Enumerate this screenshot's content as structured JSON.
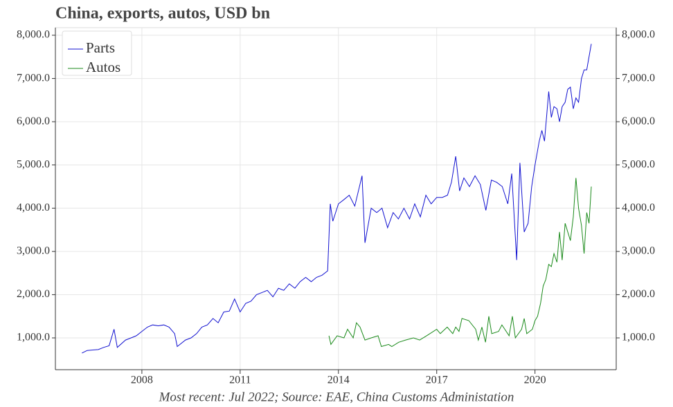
{
  "chart_data": {
    "type": "line",
    "title": "China, exports, autos, USD bn",
    "footnote": "Most recent: Jul 2022; Source: EAE, China Customs Administation",
    "xlim": [
      2005.36,
      2022.48
    ],
    "xticks": [
      2008,
      2011,
      2014,
      2017,
      2020
    ],
    "ylim": [
      265,
      8176
    ],
    "yticks": [
      {
        "value": 1000,
        "label": "1,000.0"
      },
      {
        "value": 2000,
        "label": "2,000.0"
      },
      {
        "value": 3000,
        "label": "3,000.0"
      },
      {
        "value": 4000,
        "label": "4,000.0"
      },
      {
        "value": 5000,
        "label": "5,000.0"
      },
      {
        "value": 6000,
        "label": "6,000.0"
      },
      {
        "value": 7000,
        "label": "7,000.0"
      },
      {
        "value": 8000,
        "label": "8,000.0"
      }
    ],
    "y2lim": [
      265,
      8176
    ],
    "y2ticks": [
      {
        "value": 1000,
        "label": "1,000.0"
      },
      {
        "value": 2000,
        "label": "2,000.0"
      },
      {
        "value": 3000,
        "label": "3,000.0"
      },
      {
        "value": 4000,
        "label": "4,000.0"
      },
      {
        "value": 5000,
        "label": "5,000.0"
      },
      {
        "value": 6000,
        "label": "6,000.0"
      },
      {
        "value": 7000,
        "label": "7,000.0"
      },
      {
        "value": 8000,
        "label": "8,000.0"
      }
    ],
    "grid": true,
    "legend": "upper-left",
    "series": [
      {
        "name": "Parts",
        "color": "#1010d0",
        "x": [
          2006.17,
          2006.33,
          2006.5,
          2006.67,
          2006.83,
          2007.0,
          2007.15,
          2007.25,
          2007.5,
          2007.67,
          2007.83,
          2008.0,
          2008.17,
          2008.33,
          2008.5,
          2008.67,
          2008.83,
          2009.0,
          2009.08,
          2009.33,
          2009.5,
          2009.67,
          2009.83,
          2010.0,
          2010.17,
          2010.33,
          2010.5,
          2010.67,
          2010.83,
          2011.0,
          2011.17,
          2011.33,
          2011.5,
          2011.67,
          2011.83,
          2012.0,
          2012.17,
          2012.33,
          2012.5,
          2012.67,
          2012.83,
          2013.0,
          2013.17,
          2013.33,
          2013.5,
          2013.67,
          2013.75,
          2013.83,
          2014.0,
          2014.17,
          2014.33,
          2014.5,
          2014.72,
          2014.81,
          2015.0,
          2015.17,
          2015.33,
          2015.5,
          2015.67,
          2015.83,
          2016.0,
          2016.17,
          2016.33,
          2016.5,
          2016.67,
          2016.83,
          2017.0,
          2017.17,
          2017.33,
          2017.45,
          2017.58,
          2017.7,
          2017.83,
          2018.0,
          2018.17,
          2018.33,
          2018.5,
          2018.67,
          2018.83,
          2019.0,
          2019.17,
          2019.29,
          2019.44,
          2019.54,
          2019.67,
          2019.79,
          2019.9,
          2020.0,
          2020.13,
          2020.21,
          2020.29,
          2020.42,
          2020.5,
          2020.58,
          2020.67,
          2020.75,
          2020.83,
          2020.92,
          2021.0,
          2021.08,
          2021.17,
          2021.25,
          2021.33,
          2021.42,
          2021.5,
          2021.58,
          2021.72
        ],
        "values": [
          650,
          710,
          720,
          730,
          780,
          820,
          1200,
          780,
          950,
          1000,
          1050,
          1150,
          1250,
          1300,
          1280,
          1300,
          1250,
          1100,
          800,
          950,
          1000,
          1100,
          1250,
          1300,
          1450,
          1350,
          1600,
          1620,
          1900,
          1600,
          1800,
          1850,
          2000,
          2050,
          2100,
          1950,
          2150,
          2100,
          2250,
          2150,
          2300,
          2400,
          2300,
          2400,
          2450,
          2550,
          4100,
          3700,
          4100,
          4200,
          4300,
          4050,
          4750,
          3200,
          4000,
          3900,
          4000,
          3550,
          3900,
          3750,
          4000,
          3750,
          4100,
          3800,
          4300,
          4100,
          4250,
          4250,
          4300,
          4600,
          5200,
          4400,
          4700,
          4500,
          4750,
          4550,
          3950,
          4650,
          4600,
          4500,
          4100,
          4800,
          2800,
          5050,
          3450,
          3650,
          4500,
          5000,
          5550,
          5800,
          5550,
          6700,
          6100,
          6350,
          6300,
          6000,
          6350,
          6450,
          6750,
          6800,
          6300,
          6550,
          6450,
          7000,
          7200,
          7200,
          7800
        ]
      },
      {
        "name": "Autos",
        "color": "#1a8a1a",
        "x": [
          2013.71,
          2013.77,
          2013.96,
          2014.17,
          2014.28,
          2014.45,
          2014.55,
          2014.66,
          2014.81,
          2015.0,
          2015.21,
          2015.31,
          2015.53,
          2015.63,
          2015.84,
          2016.05,
          2016.29,
          2016.48,
          2016.69,
          2016.9,
          2017.0,
          2017.11,
          2017.32,
          2017.49,
          2017.58,
          2017.68,
          2017.77,
          2017.98,
          2018.19,
          2018.27,
          2018.38,
          2018.49,
          2018.59,
          2018.68,
          2018.89,
          2018.99,
          2019.21,
          2019.31,
          2019.4,
          2019.59,
          2019.67,
          2019.75,
          2019.92,
          2020.0,
          2020.08,
          2020.17,
          2020.25,
          2020.33,
          2020.42,
          2020.5,
          2020.58,
          2020.67,
          2020.75,
          2020.83,
          2020.92,
          2021.0,
          2021.08,
          2021.17,
          2021.25,
          2021.33,
          2021.42,
          2021.5,
          2021.58,
          2021.65,
          2021.72
        ],
        "values": [
          1050,
          850,
          1050,
          1000,
          1200,
          1000,
          1350,
          1250,
          950,
          1000,
          1050,
          800,
          850,
          800,
          900,
          950,
          1000,
          950,
          1050,
          1150,
          1200,
          1100,
          1250,
          1100,
          1250,
          1150,
          1450,
          1400,
          1200,
          950,
          1250,
          900,
          1500,
          1100,
          1150,
          1300,
          1050,
          1500,
          1000,
          1200,
          1450,
          1100,
          1200,
          1400,
          1500,
          1800,
          2200,
          2350,
          2700,
          2650,
          2950,
          2750,
          3450,
          2800,
          3650,
          3450,
          3250,
          3800,
          4700,
          4000,
          3600,
          2950,
          3900,
          3650,
          4500
        ]
      }
    ]
  }
}
